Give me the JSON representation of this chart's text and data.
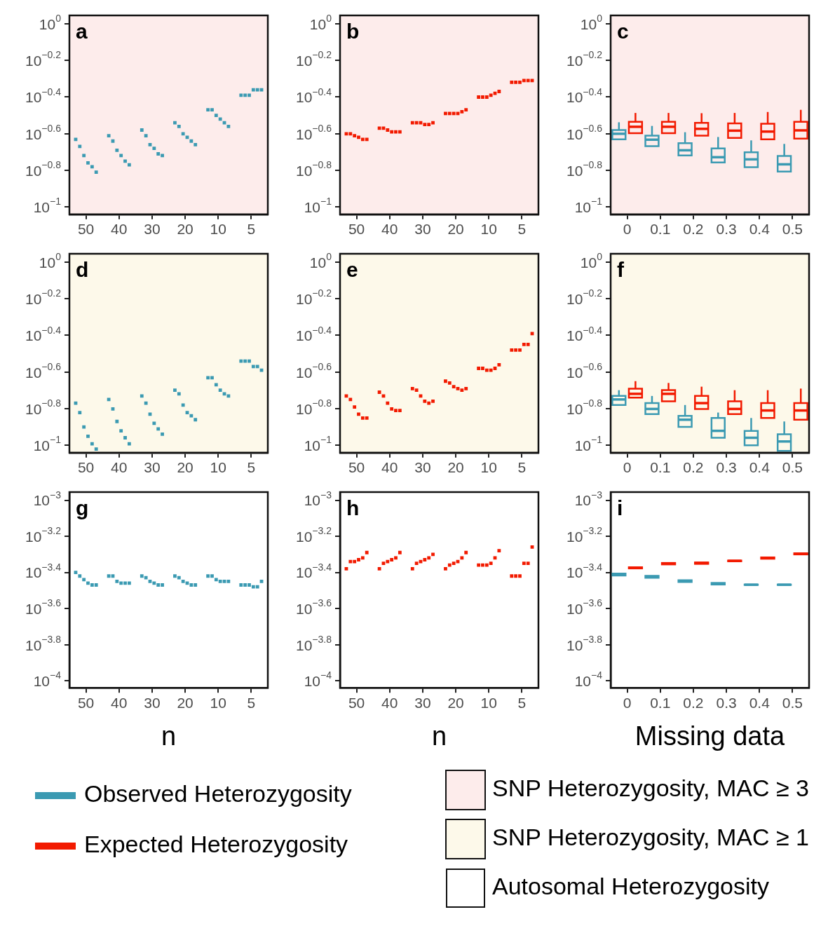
{
  "chart_data": [
    {
      "type": "scatter",
      "annotations": [
        "a"
      ],
      "categories": [
        "50",
        "40",
        "30",
        "20",
        "10",
        "5"
      ],
      "log": true,
      "ylim": [
        0.0912,
        1.11
      ],
      "yticks": [
        {
          "value": 1,
          "label": "10$^{0}$"
        },
        {
          "value": 0.631,
          "label": "10$^{−0.2}$"
        },
        {
          "value": 0.398,
          "label": "10$^{−0.4}$"
        },
        {
          "value": 0.251,
          "label": "10$^{−0.6}$"
        },
        {
          "value": 0.158,
          "label": "10$^{−0.8}$"
        },
        {
          "value": 0.1,
          "label": "10$^{−1}$"
        }
      ],
      "grid": false,
      "marker": "square",
      "bands": [
        {
          "axis": "y",
          "from": 0.0912,
          "to": 1.11,
          "color": "#fdeceb",
          "label": "SNP Heterozygosity, MAC ≥ 3"
        }
      ],
      "series": [
        {
          "color": "#3b9ab2",
          "values": [
            0.234,
            0.245,
            0.263,
            0.288,
            0.339,
            0.407
          ]
        },
        {
          "color": "#3b9ab2",
          "values": [
            0.214,
            0.229,
            0.245,
            0.275,
            0.339,
            0.407
          ]
        },
        {
          "color": "#3b9ab2",
          "values": [
            0.191,
            0.204,
            0.219,
            0.251,
            0.316,
            0.407
          ]
        },
        {
          "color": "#3b9ab2",
          "values": [
            0.174,
            0.191,
            0.209,
            0.24,
            0.302,
            0.436
          ]
        },
        {
          "color": "#3b9ab2",
          "values": [
            0.166,
            0.178,
            0.195,
            0.229,
            0.288,
            0.436
          ]
        },
        {
          "color": "#3b9ab2",
          "values": [
            0.155,
            0.17,
            0.191,
            0.219,
            0.275,
            0.436
          ]
        }
      ]
    },
    {
      "type": "scatter",
      "annotations": [
        "b"
      ],
      "categories": [
        "50",
        "40",
        "30",
        "20",
        "10",
        "5"
      ],
      "log": true,
      "ylim": [
        0.0912,
        1.11
      ],
      "yticks": [
        {
          "value": 1,
          "label": "10$^{0}$"
        },
        {
          "value": 0.631,
          "label": "10$^{−0.2}$"
        },
        {
          "value": 0.398,
          "label": "10$^{−0.4}$"
        },
        {
          "value": 0.251,
          "label": "10$^{−0.6}$"
        },
        {
          "value": 0.158,
          "label": "10$^{−0.8}$"
        },
        {
          "value": 0.1,
          "label": "10$^{−1}$"
        }
      ],
      "grid": false,
      "marker": "square",
      "bands": [
        {
          "axis": "y",
          "from": 0.0912,
          "to": 1.11,
          "color": "#fdeceb"
        }
      ],
      "series": [
        {
          "color": "#f21a00",
          "values": [
            0.251,
            0.269,
            0.288,
            0.324,
            0.398,
            0.479
          ]
        },
        {
          "color": "#f21a00",
          "values": [
            0.251,
            0.269,
            0.288,
            0.324,
            0.398,
            0.479
          ]
        },
        {
          "color": "#f21a00",
          "values": [
            0.245,
            0.263,
            0.288,
            0.324,
            0.398,
            0.479
          ]
        },
        {
          "color": "#f21a00",
          "values": [
            0.24,
            0.257,
            0.282,
            0.324,
            0.407,
            0.49
          ]
        },
        {
          "color": "#f21a00",
          "values": [
            0.234,
            0.257,
            0.282,
            0.331,
            0.417,
            0.49
          ]
        },
        {
          "color": "#f21a00",
          "values": [
            0.234,
            0.257,
            0.288,
            0.339,
            0.427,
            0.49
          ]
        }
      ]
    },
    {
      "type": "box",
      "annotations": [
        "c"
      ],
      "categories": [
        "0",
        "0.1",
        "0.2",
        "0.3",
        "0.4",
        "0.5"
      ],
      "log": true,
      "ylim": [
        0.0912,
        1.11
      ],
      "yticks": [
        {
          "value": 1,
          "label": "10$^{0}$"
        },
        {
          "value": 0.631,
          "label": "10$^{−0.2}$"
        },
        {
          "value": 0.398,
          "label": "10$^{−0.4}$"
        },
        {
          "value": 0.251,
          "label": "10$^{−0.6}$"
        },
        {
          "value": 0.158,
          "label": "10$^{−0.8}$"
        },
        {
          "value": 0.1,
          "label": "10$^{−1}$"
        }
      ],
      "grid": false,
      "legend": "bottom",
      "bands": [
        {
          "axis": "y",
          "from": 0.0912,
          "to": 1.11,
          "color": "#fdeceb"
        }
      ],
      "series": [
        {
          "name": "Observed Heterozygosity",
          "color": "#3b9ab2",
          "boxes": [
            {
              "low": 0.234,
              "q1": 0.234,
              "median": 0.251,
              "q3": 0.263,
              "high": 0.29
            },
            {
              "low": 0.215,
              "q1": 0.215,
              "median": 0.233,
              "q3": 0.245,
              "high": 0.277
            },
            {
              "low": 0.191,
              "q1": 0.191,
              "median": 0.204,
              "q3": 0.223,
              "high": 0.256
            },
            {
              "low": 0.175,
              "q1": 0.175,
              "median": 0.187,
              "q3": 0.209,
              "high": 0.241
            },
            {
              "low": 0.165,
              "q1": 0.165,
              "median": 0.182,
              "q3": 0.199,
              "high": 0.231
            },
            {
              "low": 0.156,
              "q1": 0.156,
              "median": 0.171,
              "q3": 0.19,
              "high": 0.221
            }
          ]
        },
        {
          "name": "Expected Heterozygosity",
          "color": "#f21a00",
          "boxes": [
            {
              "low": 0.253,
              "q1": 0.253,
              "median": 0.274,
              "q3": 0.292,
              "high": 0.326
            },
            {
              "low": 0.253,
              "q1": 0.253,
              "median": 0.274,
              "q3": 0.292,
              "high": 0.326
            },
            {
              "low": 0.245,
              "q1": 0.245,
              "median": 0.267,
              "q3": 0.288,
              "high": 0.325
            },
            {
              "low": 0.238,
              "q1": 0.238,
              "median": 0.261,
              "q3": 0.286,
              "high": 0.326
            },
            {
              "low": 0.234,
              "q1": 0.234,
              "median": 0.258,
              "q3": 0.285,
              "high": 0.33
            },
            {
              "low": 0.236,
              "q1": 0.236,
              "median": 0.262,
              "q3": 0.292,
              "high": 0.339
            }
          ]
        }
      ]
    },
    {
      "type": "scatter",
      "annotations": [
        "d"
      ],
      "categories": [
        "50",
        "40",
        "30",
        "20",
        "10",
        "5"
      ],
      "log": true,
      "ylim": [
        0.0912,
        1.11
      ],
      "yticks": [
        {
          "value": 1,
          "label": "10$^{0}$"
        },
        {
          "value": 0.631,
          "label": "10$^{−0.2}$"
        },
        {
          "value": 0.398,
          "label": "10$^{−0.4}$"
        },
        {
          "value": 0.251,
          "label": "10$^{−0.6}$"
        },
        {
          "value": 0.158,
          "label": "10$^{−0.8}$"
        },
        {
          "value": 0.1,
          "label": "10$^{−1}$"
        }
      ],
      "grid": false,
      "marker": "square",
      "bands": [
        {
          "axis": "y",
          "from": 0.0912,
          "to": 1.11,
          "color": "#fdf9ea",
          "label": "SNP Heterozygosity, MAC ≥ 1"
        }
      ],
      "series": [
        {
          "color": "#3b9ab2",
          "values": [
            0.17,
            0.178,
            0.186,
            0.2,
            0.234,
            0.288
          ]
        },
        {
          "color": "#3b9ab2",
          "values": [
            0.151,
            0.158,
            0.17,
            0.191,
            0.234,
            0.288
          ]
        },
        {
          "color": "#3b9ab2",
          "values": [
            0.126,
            0.135,
            0.148,
            0.166,
            0.214,
            0.288
          ]
        },
        {
          "color": "#3b9ab2",
          "values": [
            0.112,
            0.12,
            0.132,
            0.151,
            0.2,
            0.269
          ]
        },
        {
          "color": "#3b9ab2",
          "values": [
            0.102,
            0.11,
            0.123,
            0.145,
            0.191,
            0.269
          ]
        },
        {
          "color": "#3b9ab2",
          "values": [
            0.0955,
            0.102,
            0.115,
            0.138,
            0.186,
            0.257
          ]
        }
      ]
    },
    {
      "type": "scatter",
      "annotations": [
        "e"
      ],
      "categories": [
        "50",
        "40",
        "30",
        "20",
        "10",
        "5"
      ],
      "log": true,
      "ylim": [
        0.0912,
        1.11
      ],
      "yticks": [
        {
          "value": 1,
          "label": "10$^{0}$"
        },
        {
          "value": 0.631,
          "label": "10$^{−0.2}$"
        },
        {
          "value": 0.398,
          "label": "10$^{−0.4}$"
        },
        {
          "value": 0.251,
          "label": "10$^{−0.6}$"
        },
        {
          "value": 0.158,
          "label": "10$^{−0.8}$"
        },
        {
          "value": 0.1,
          "label": "10$^{−1}$"
        }
      ],
      "grid": false,
      "marker": "square",
      "bands": [
        {
          "axis": "y",
          "from": 0.0912,
          "to": 1.11,
          "color": "#fdf9ea"
        }
      ],
      "series": [
        {
          "color": "#f21a00",
          "values": [
            0.186,
            0.195,
            0.204,
            0.224,
            0.263,
            0.331
          ]
        },
        {
          "color": "#f21a00",
          "values": [
            0.178,
            0.186,
            0.2,
            0.219,
            0.263,
            0.331
          ]
        },
        {
          "color": "#f21a00",
          "values": [
            0.162,
            0.17,
            0.186,
            0.209,
            0.257,
            0.331
          ]
        },
        {
          "color": "#f21a00",
          "values": [
            0.148,
            0.158,
            0.174,
            0.204,
            0.257,
            0.355
          ]
        },
        {
          "color": "#f21a00",
          "values": [
            0.141,
            0.155,
            0.17,
            0.2,
            0.263,
            0.355
          ]
        },
        {
          "color": "#f21a00",
          "values": [
            0.141,
            0.155,
            0.174,
            0.204,
            0.275,
            0.407
          ]
        }
      ]
    },
    {
      "type": "box",
      "annotations": [
        "f"
      ],
      "categories": [
        "0",
        "0.1",
        "0.2",
        "0.3",
        "0.4",
        "0.5"
      ],
      "log": true,
      "ylim": [
        0.0912,
        1.11
      ],
      "yticks": [
        {
          "value": 1,
          "label": "10$^{0}$"
        },
        {
          "value": 0.631,
          "label": "10$^{−0.2}$"
        },
        {
          "value": 0.398,
          "label": "10$^{−0.4}$"
        },
        {
          "value": 0.251,
          "label": "10$^{−0.6}$"
        },
        {
          "value": 0.158,
          "label": "10$^{−0.8}$"
        },
        {
          "value": 0.1,
          "label": "10$^{−1}$"
        }
      ],
      "grid": false,
      "bands": [
        {
          "axis": "y",
          "from": 0.0912,
          "to": 1.11,
          "color": "#fdf9ea"
        }
      ],
      "series": [
        {
          "color": "#3b9ab2",
          "boxes": [
            {
              "low": 0.166,
              "q1": 0.166,
              "median": 0.178,
              "q3": 0.186,
              "high": 0.2
            },
            {
              "low": 0.148,
              "q1": 0.148,
              "median": 0.158,
              "q3": 0.17,
              "high": 0.186
            },
            {
              "low": 0.126,
              "q1": 0.126,
              "median": 0.138,
              "q3": 0.145,
              "high": 0.166
            },
            {
              "low": 0.11,
              "q1": 0.11,
              "median": 0.12,
              "q3": 0.141,
              "high": 0.151
            },
            {
              "low": 0.1,
              "q1": 0.1,
              "median": 0.11,
              "q3": 0.12,
              "high": 0.141
            },
            {
              "low": 0.0933,
              "q1": 0.0933,
              "median": 0.105,
              "q3": 0.115,
              "high": 0.135
            }
          ]
        },
        {
          "color": "#f21a00",
          "boxes": [
            {
              "low": 0.182,
              "q1": 0.182,
              "median": 0.191,
              "q3": 0.204,
              "high": 0.224
            },
            {
              "low": 0.174,
              "q1": 0.174,
              "median": 0.191,
              "q3": 0.2,
              "high": 0.219
            },
            {
              "low": 0.158,
              "q1": 0.158,
              "median": 0.17,
              "q3": 0.186,
              "high": 0.209
            },
            {
              "low": 0.148,
              "q1": 0.148,
              "median": 0.158,
              "q3": 0.174,
              "high": 0.2
            },
            {
              "low": 0.141,
              "q1": 0.141,
              "median": 0.155,
              "q3": 0.17,
              "high": 0.2
            },
            {
              "low": 0.138,
              "q1": 0.138,
              "median": 0.155,
              "q3": 0.17,
              "high": 0.204
            }
          ]
        }
      ]
    },
    {
      "type": "scatter",
      "annotations": [
        "g",
        "Autosomal Heterozygosity"
      ],
      "xlabel": "n",
      "categories": [
        "50",
        "40",
        "30",
        "20",
        "10",
        "5"
      ],
      "log": true,
      "ylim": [
        9.12e-05,
        0.00111
      ],
      "yticks": [
        {
          "value": 0.001,
          "label": "10$^{−3}$"
        },
        {
          "value": 0.000631,
          "label": "10$^{−3.2}$"
        },
        {
          "value": 0.000398,
          "label": "10$^{−3.4}$"
        },
        {
          "value": 0.000251,
          "label": "10$^{−3.6}$"
        },
        {
          "value": 0.000158,
          "label": "10$^{−3.8}$"
        },
        {
          "value": 0.0001,
          "label": "10$^{−4}$"
        }
      ],
      "grid": false,
      "marker": "square",
      "series": [
        {
          "color": "#3b9ab2",
          "values": [
            0.000398,
            0.00038,
            0.00038,
            0.00038,
            0.00038,
            0.000339
          ]
        },
        {
          "color": "#3b9ab2",
          "values": [
            0.00038,
            0.00038,
            0.000372,
            0.000372,
            0.00038,
            0.000339
          ]
        },
        {
          "color": "#3b9ab2",
          "values": [
            0.000363,
            0.000355,
            0.000355,
            0.000355,
            0.000363,
            0.000339
          ]
        },
        {
          "color": "#3b9ab2",
          "values": [
            0.000347,
            0.000347,
            0.000347,
            0.000347,
            0.000355,
            0.000331
          ]
        },
        {
          "color": "#3b9ab2",
          "values": [
            0.000339,
            0.000347,
            0.000339,
            0.000339,
            0.000355,
            0.000331
          ]
        },
        {
          "color": "#3b9ab2",
          "values": [
            0.000339,
            0.000347,
            0.000339,
            0.000339,
            0.000355,
            0.000355
          ]
        }
      ]
    },
    {
      "type": "scatter",
      "annotations": [
        "h"
      ],
      "xlabel": "n",
      "categories": [
        "50",
        "40",
        "30",
        "20",
        "10",
        "5"
      ],
      "log": true,
      "ylim": [
        9.12e-05,
        0.00111
      ],
      "yticks": [
        {
          "value": 0.001,
          "label": "10$^{−3}$"
        },
        {
          "value": 0.000631,
          "label": "10$^{−3.2}$"
        },
        {
          "value": 0.000398,
          "label": "10$^{−3.4}$"
        },
        {
          "value": 0.000251,
          "label": "10$^{−3.6}$"
        },
        {
          "value": 0.000158,
          "label": "10$^{−3.8}$"
        },
        {
          "value": 0.0001,
          "label": "10$^{−4}$"
        }
      ],
      "grid": false,
      "marker": "square",
      "series": [
        {
          "color": "#f21a00",
          "values": [
            0.000417,
            0.000417,
            0.000417,
            0.000417,
            0.000437,
            0.00038
          ]
        },
        {
          "color": "#f21a00",
          "values": [
            0.000457,
            0.000447,
            0.000447,
            0.000437,
            0.000437,
            0.00038
          ]
        },
        {
          "color": "#f21a00",
          "values": [
            0.000457,
            0.000457,
            0.000457,
            0.000447,
            0.000437,
            0.00038
          ]
        },
        {
          "color": "#f21a00",
          "values": [
            0.000468,
            0.000468,
            0.000468,
            0.000457,
            0.000447,
            0.000447
          ]
        },
        {
          "color": "#f21a00",
          "values": [
            0.000479,
            0.000479,
            0.000479,
            0.000479,
            0.000479,
            0.000447
          ]
        },
        {
          "color": "#f21a00",
          "values": [
            0.000513,
            0.000513,
            0.000501,
            0.000513,
            0.000525,
            0.00055
          ]
        }
      ]
    },
    {
      "type": "box",
      "annotations": [
        "i"
      ],
      "xlabel": "Missing data",
      "categories": [
        "0",
        "0.1",
        "0.2",
        "0.3",
        "0.4",
        "0.5"
      ],
      "log": true,
      "ylim": [
        9.12e-05,
        0.00111
      ],
      "yticks": [
        {
          "value": 0.001,
          "label": "10$^{−3}$"
        },
        {
          "value": 0.000631,
          "label": "10$^{−3.2}$"
        },
        {
          "value": 0.000398,
          "label": "10$^{−3.4}$"
        },
        {
          "value": 0.000251,
          "label": "10$^{−3.6}$"
        },
        {
          "value": 0.000158,
          "label": "10$^{−3.8}$"
        },
        {
          "value": 0.0001,
          "label": "10$^{−4}$"
        }
      ],
      "grid": false,
      "series": [
        {
          "color": "#3b9ab2",
          "boxes": [
            {
              "low": 0.000383,
              "q1": 0.000383,
              "median": 0.000387,
              "q3": 0.000392,
              "high": 0.000392
            },
            {
              "low": 0.000372,
              "q1": 0.000372,
              "median": 0.000377,
              "q3": 0.000381,
              "high": 0.000381
            },
            {
              "low": 0.000352,
              "q1": 0.000352,
              "median": 0.000356,
              "q3": 0.00036,
              "high": 0.00036
            },
            {
              "low": 0.000341,
              "q1": 0.000341,
              "median": 0.000344,
              "q3": 0.000348,
              "high": 0.000348
            },
            {
              "low": 0.000339,
              "q1": 0.000339,
              "median": 0.00034,
              "q3": 0.000341,
              "high": 0.000341
            },
            {
              "low": 0.000339,
              "q1": 0.000339,
              "median": 0.00034,
              "q3": 0.000341,
              "high": 0.000341
            }
          ]
        },
        {
          "color": "#f21a00",
          "boxes": [
            {
              "low": 0.000419,
              "q1": 0.000419,
              "median": 0.000422,
              "q3": 0.000425,
              "high": 0.000425
            },
            {
              "low": 0.000441,
              "q1": 0.000441,
              "median": 0.000445,
              "q3": 0.000449,
              "high": 0.000449
            },
            {
              "low": 0.000444,
              "q1": 0.000444,
              "median": 0.000448,
              "q3": 0.000452,
              "high": 0.000452
            },
            {
              "low": 0.000459,
              "q1": 0.000459,
              "median": 0.000461,
              "q3": 0.000463,
              "high": 0.000463
            },
            {
              "low": 0.000474,
              "q1": 0.000474,
              "median": 0.000478,
              "q3": 0.000482,
              "high": 0.000482
            },
            {
              "low": 0.000501,
              "q1": 0.000501,
              "median": 0.000504,
              "q3": 0.000508,
              "high": 0.000508
            }
          ]
        }
      ]
    }
  ]
}
